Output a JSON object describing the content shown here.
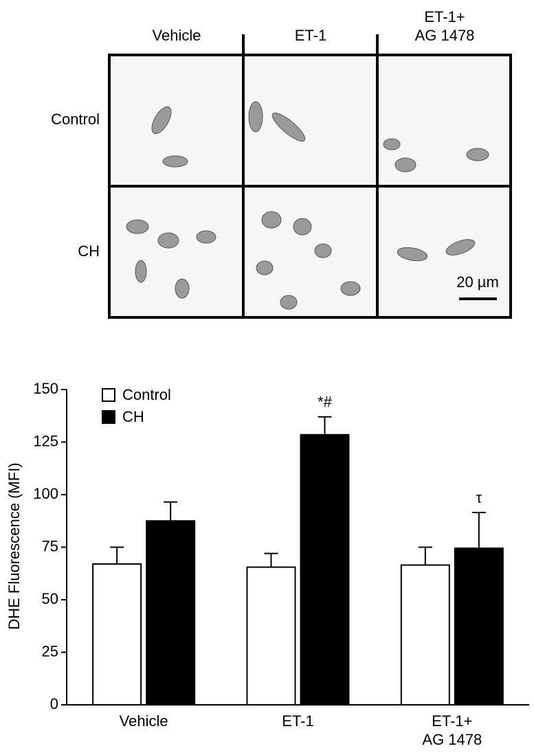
{
  "micrographs": {
    "columns": [
      "Vehicle",
      "ET-1",
      "ET-1+\nAG 1478"
    ],
    "rows": [
      "Control",
      "CH"
    ],
    "scale_bar": "20 µm"
  },
  "chart_data": {
    "type": "bar",
    "y_label": "DHE Fluorescence (MFI)",
    "categories": [
      "Vehicle",
      "ET-1",
      "ET-1+\nAG 1478"
    ],
    "series": [
      {
        "name": "Control",
        "color": "#ffffff",
        "values": [
          67,
          65.5,
          66.5
        ],
        "errors": [
          8,
          6.5,
          8.5
        ],
        "annotations": [
          null,
          null,
          null
        ]
      },
      {
        "name": "CH",
        "color": "#000000",
        "values": [
          87.5,
          128.5,
          74.5
        ],
        "errors": [
          9,
          8.5,
          17
        ],
        "annotations": [
          null,
          "*#",
          "τ"
        ]
      }
    ],
    "ylim": [
      0,
      150
    ],
    "yticks": [
      0,
      25,
      50,
      75,
      100,
      125,
      150
    ],
    "legend": "upper left"
  }
}
